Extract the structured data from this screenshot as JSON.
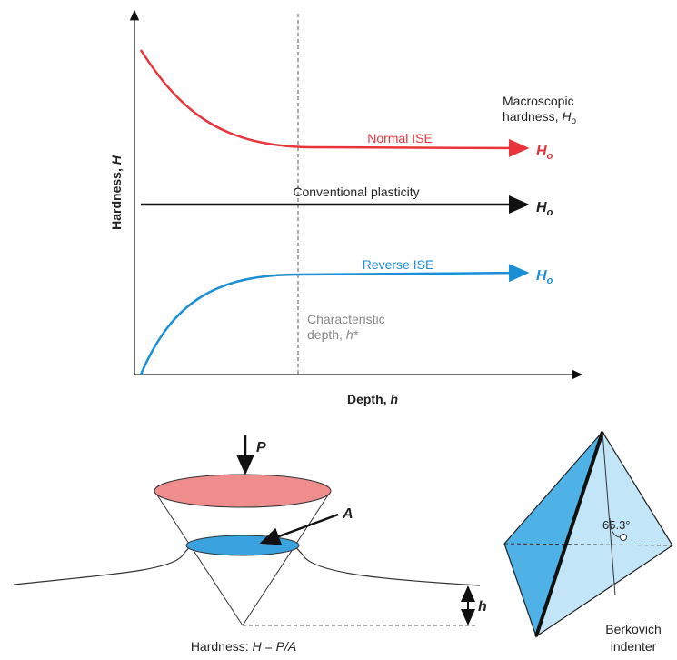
{
  "chart": {
    "y_axis_label": {
      "text": "Hardness, ",
      "var": "H"
    },
    "x_axis_label": {
      "text": "Depth, ",
      "var": "h"
    },
    "normal_ise": {
      "label": "Normal ISE",
      "end": "H",
      "sub": "o"
    },
    "conventional": {
      "label": "Conventional plasticity",
      "end": "H",
      "sub": "o"
    },
    "reverse_ise": {
      "label": "Reverse ISE",
      "end": "H",
      "sub": "o"
    },
    "macroscopic": {
      "line1": "Macroscopic",
      "line2": "hardness, ",
      "var": "H",
      "sub": "o"
    },
    "characteristic": {
      "line1": "Characteristic",
      "line2": "depth, ",
      "var": "h*"
    }
  },
  "indentation": {
    "load": "P",
    "area": "A",
    "depth": "h",
    "formula": {
      "text": "Hardness: ",
      "var1": "H",
      "eq": " = ",
      "var2": "P/A"
    }
  },
  "berkovich": {
    "angle": "65.3°",
    "line1": "Berkovich",
    "line2": "indenter"
  }
}
